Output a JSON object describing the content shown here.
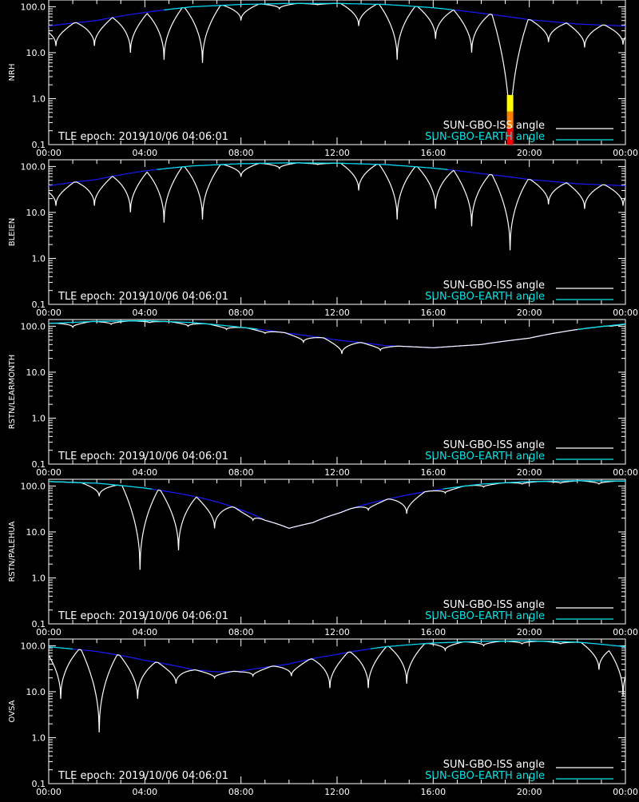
{
  "legend": {
    "iss_label": "SUN-GBO-ISS angle",
    "earth_label": "SUN-GBO-EARTH angle",
    "iss_color": "#ffffff",
    "earth_color": "#00e5e5"
  },
  "epoch_text": "TLE epoch: 2019/10/06 04:06:01",
  "colors": {
    "background": "#000000",
    "axis": "#ffffff",
    "earth_dip_curve": "#1a1aff",
    "iss_shadow": "#808080",
    "marker_top": "#ffff00",
    "marker_mid": "#ff8000",
    "marker_bottom": "#ff0000"
  },
  "chart_data": [
    {
      "type": "line",
      "ylabel": "NRH",
      "xlim": [
        "00:00",
        "24:00"
      ],
      "xticks": [
        "00:00",
        "04:00",
        "08:00",
        "12:00",
        "16:00",
        "20:00",
        "00:00"
      ],
      "yscale": "log",
      "ylim": [
        0.1,
        140
      ],
      "yticks": [
        "0.1",
        "1.0",
        "10.0",
        "100.0"
      ],
      "earth_angle": {
        "x_hours": [
          0,
          2,
          4,
          6,
          8,
          10,
          12,
          14,
          16,
          18,
          20,
          22,
          24
        ],
        "y_deg": [
          38,
          50,
          75,
          100,
          112,
          118,
          118,
          112,
          95,
          72,
          52,
          42,
          38
        ]
      },
      "iss_dips": {
        "x_hours": [
          0.3,
          1.9,
          3.4,
          4.8,
          6.4,
          8.0,
          9.6,
          11.2,
          12.9,
          14.5,
          16.1,
          17.6,
          19.2,
          20.8,
          22.3,
          23.9
        ],
        "min_deg": [
          14,
          14,
          10,
          7,
          6,
          50,
          90,
          110,
          38,
          7,
          20,
          10,
          0.09,
          17,
          13,
          15
        ]
      },
      "marker": {
        "x_hour": 19.2,
        "y_range": [
          0.1,
          1.2
        ]
      }
    },
    {
      "type": "line",
      "ylabel": "BLEIEN",
      "xlim": [
        "00:00",
        "24:00"
      ],
      "xticks": [
        "00:00",
        "04:00",
        "08:00",
        "12:00",
        "16:00",
        "20:00",
        "00:00"
      ],
      "yscale": "log",
      "ylim": [
        0.1,
        140
      ],
      "yticks": [
        "0.1",
        "1.0",
        "10.0",
        "100.0"
      ],
      "earth_angle": {
        "x_hours": [
          0,
          2,
          4,
          6,
          8,
          10,
          12,
          14,
          16,
          18,
          20,
          22,
          24
        ],
        "y_deg": [
          38,
          52,
          80,
          103,
          115,
          120,
          118,
          110,
          92,
          70,
          52,
          42,
          38
        ]
      },
      "iss_dips": {
        "x_hours": [
          0.3,
          1.9,
          3.4,
          4.8,
          6.4,
          8.0,
          9.6,
          11.2,
          12.9,
          14.5,
          16.1,
          17.6,
          19.2,
          20.8,
          22.3,
          23.9
        ],
        "min_deg": [
          14,
          14,
          10,
          6,
          7,
          60,
          90,
          110,
          30,
          7,
          12,
          5,
          1.5,
          15,
          12,
          14
        ]
      }
    },
    {
      "type": "line",
      "ylabel": "RSTN/LEARMONTH",
      "xlim": [
        "00:00",
        "24:00"
      ],
      "xticks": [
        "00:00",
        "04:00",
        "08:00",
        "12:00",
        "16:00",
        "20:00",
        "00:00"
      ],
      "yscale": "log",
      "ylim": [
        0.1,
        140
      ],
      "yticks": [
        "0.1",
        "1.0",
        "10.0",
        "100.0"
      ],
      "earth_angle": {
        "x_hours": [
          0,
          2,
          4,
          6,
          8,
          10,
          12,
          14,
          16,
          18,
          20,
          22,
          24
        ],
        "y_deg": [
          115,
          128,
          132,
          120,
          95,
          70,
          50,
          38,
          34,
          40,
          55,
          85,
          112
        ]
      },
      "iss_dips": {
        "x_hours": [
          1.0,
          2.6,
          4.2,
          5.8,
          7.4,
          9.0,
          10.6,
          12.2,
          13.8,
          15.4,
          17.0,
          18.6,
          20.2,
          21.8,
          23.4
        ],
        "min_deg": [
          95,
          110,
          120,
          100,
          85,
          70,
          45,
          25,
          30,
          40,
          45,
          55,
          75,
          95,
          100
        ]
      }
    },
    {
      "type": "line",
      "ylabel": "RSTN/PALEHUA",
      "xlim": [
        "00:00",
        "24:00"
      ],
      "xticks": [
        "00:00",
        "04:00",
        "08:00",
        "12:00",
        "16:00",
        "20:00",
        "00:00"
      ],
      "yscale": "log",
      "ylim": [
        0.1,
        140
      ],
      "yticks": [
        "0.1",
        "1.0",
        "10.0",
        "100.0"
      ],
      "earth_angle": {
        "x_hours": [
          0,
          2,
          4,
          6,
          8,
          9,
          10,
          11,
          12,
          14,
          16,
          18,
          20,
          22,
          24
        ],
        "y_deg": [
          125,
          115,
          90,
          60,
          30,
          18,
          12,
          16,
          25,
          50,
          80,
          110,
          125,
          130,
          128
        ]
      },
      "iss_dips": {
        "x_hours": [
          2.1,
          3.8,
          5.4,
          6.9,
          8.5,
          10.1,
          11.7,
          13.3,
          14.9,
          16.5,
          18.1,
          19.7,
          21.3,
          22.9
        ],
        "min_deg": [
          60,
          1.5,
          4,
          12,
          18,
          20,
          25,
          30,
          25,
          70,
          95,
          110,
          115,
          110
        ]
      }
    },
    {
      "type": "line",
      "ylabel": "OVSA",
      "xlim": [
        "00:00",
        "24:00"
      ],
      "xticks": [
        "00:00",
        "04:00",
        "08:00",
        "12:00",
        "16:00",
        "20:00",
        "00:00"
      ],
      "yscale": "log",
      "ylim": [
        0.1,
        140
      ],
      "yticks": [
        "0.1",
        "1.0",
        "10.0",
        "100.0"
      ],
      "earth_angle": {
        "x_hours": [
          0,
          2,
          4,
          6,
          7,
          8,
          10,
          12,
          14,
          16,
          18,
          20,
          22,
          24
        ],
        "y_deg": [
          95,
          75,
          48,
          30,
          27,
          28,
          40,
          65,
          95,
          115,
          125,
          128,
          120,
          95
        ]
      },
      "iss_dips": {
        "x_hours": [
          0.5,
          2.1,
          3.7,
          5.3,
          6.9,
          8.5,
          10.1,
          11.7,
          13.3,
          14.9,
          16.5,
          18.1,
          19.7,
          21.3,
          22.9,
          23.9
        ],
        "min_deg": [
          7,
          1.3,
          7,
          15,
          20,
          22,
          22,
          12,
          12,
          15,
          80,
          100,
          110,
          110,
          30,
          8
        ]
      }
    }
  ]
}
